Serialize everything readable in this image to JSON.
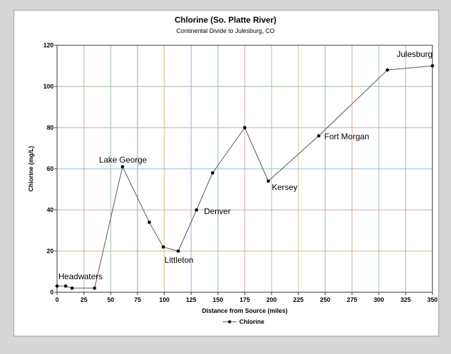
{
  "chart_data": {
    "type": "line",
    "title": "Chlorine (So. Platte River)",
    "subtitle": "Continental Divide to Julesburg, CO",
    "xlabel": "Distance from Source (miles)",
    "ylabel": "Chlorine (mg/L)",
    "xlim": [
      0,
      350
    ],
    "ylim": [
      0,
      120
    ],
    "xticks": [
      0,
      25,
      50,
      75,
      100,
      125,
      150,
      175,
      200,
      225,
      250,
      275,
      300,
      325,
      350
    ],
    "yticks": [
      0,
      20,
      40,
      60,
      80,
      100,
      120
    ],
    "grid": true,
    "legend_position": "bottom-center",
    "series": [
      {
        "name": "Chlorine",
        "color": "#555555",
        "points": [
          {
            "x": 0,
            "y": 3
          },
          {
            "x": 8,
            "y": 3
          },
          {
            "x": 14,
            "y": 2
          },
          {
            "x": 35,
            "y": 2
          },
          {
            "x": 61,
            "y": 61
          },
          {
            "x": 86,
            "y": 34
          },
          {
            "x": 99,
            "y": 22
          },
          {
            "x": 113,
            "y": 20
          },
          {
            "x": 130,
            "y": 40
          },
          {
            "x": 145,
            "y": 58
          },
          {
            "x": 175,
            "y": 80
          },
          {
            "x": 197,
            "y": 54
          },
          {
            "x": 244,
            "y": 76
          },
          {
            "x": 308,
            "y": 108
          },
          {
            "x": 350,
            "y": 110
          }
        ]
      }
    ],
    "annotations": [
      {
        "text": "Headwaters",
        "x": 0,
        "y": 3
      },
      {
        "text": "Lake George",
        "x": 61,
        "y": 61
      },
      {
        "text": "Littleton",
        "x": 113,
        "y": 20
      },
      {
        "text": "Denver",
        "x": 130,
        "y": 40
      },
      {
        "text": "Kersey",
        "x": 197,
        "y": 54
      },
      {
        "text": "Fort Morgan",
        "x": 244,
        "y": 76
      },
      {
        "text": "Julesburg",
        "x": 350,
        "y": 110
      }
    ],
    "grid_colors": [
      "#d9a0a0",
      "#9ab89a",
      "#9a9ad6",
      "#d0b47a",
      "#b49ad0",
      "#8ab4c8",
      "#d0a0b4",
      "#a8c890",
      "#c8c890",
      "#90b4d0",
      "#d4a890",
      "#a0c8b4",
      "#b8a0c8",
      "#c8b090"
    ]
  }
}
